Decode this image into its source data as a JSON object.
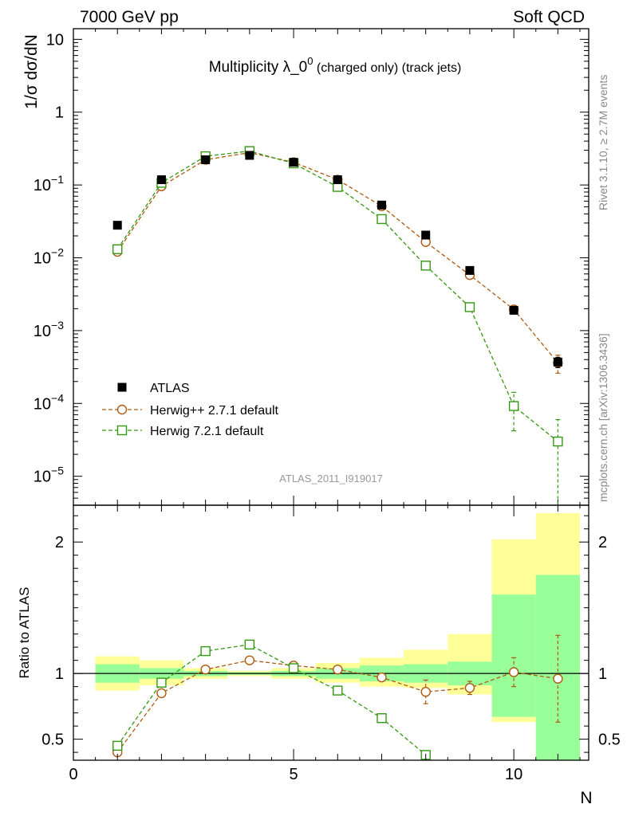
{
  "header": {
    "left": "7000 GeV pp",
    "right": "Soft QCD"
  },
  "side_text": {
    "rivet": "Rivet 3.1.10, ≥ 2.7M events",
    "mcplots": "mcplots.cern.ch [arXiv:1306.3436]"
  },
  "watermark": "ATLAS_2011_I919017",
  "colors": {
    "data": "#000000",
    "herwigpp": "#b05a10",
    "herwig7": "#339911",
    "band_outer": "#ffff99",
    "band_inner": "#99ff99"
  },
  "chart_data": [
    {
      "type": "scatter",
      "title_main": "Multiplicity λ_0",
      "title_sup": "0",
      "title_extra": " (charged only) (track jets)",
      "ylabel": "1/σ dσ/dN",
      "yscale": "log",
      "ylim": [
        4e-06,
        14
      ],
      "xlim": [
        0,
        11.7
      ],
      "y_ticks": [
        {
          "v": 10,
          "base": "10",
          "exp": ""
        },
        {
          "v": 1,
          "base": "1",
          "exp": ""
        },
        {
          "v": 0.1,
          "base": "10",
          "exp": "−1"
        },
        {
          "v": 0.01,
          "base": "10",
          "exp": "−2"
        },
        {
          "v": 0.001,
          "base": "10",
          "exp": "−3"
        },
        {
          "v": 0.0001,
          "base": "10",
          "exp": "−4"
        },
        {
          "v": 1e-05,
          "base": "10",
          "exp": "−5"
        }
      ],
      "legend_position": "lower-left",
      "series": [
        {
          "name": "ATLAS",
          "style": "data",
          "x": [
            1,
            2,
            3,
            4,
            5,
            6,
            7,
            8,
            9,
            10,
            11
          ],
          "y": [
            0.028,
            0.118,
            0.222,
            0.255,
            0.205,
            0.118,
            0.053,
            0.0205,
            0.0067,
            0.0019,
            0.00037
          ],
          "yerr": [
            0.001,
            0.003,
            0.005,
            0.006,
            0.005,
            0.003,
            0.0015,
            0.0007,
            0.0003,
            0.0001,
            6e-05
          ]
        },
        {
          "name": "Herwig++ 2.7.1 default",
          "style": "circle",
          "x": [
            1,
            2,
            3,
            4,
            5,
            6,
            7,
            8,
            9,
            10,
            11
          ],
          "y": [
            0.0121,
            0.096,
            0.222,
            0.278,
            0.205,
            0.118,
            0.051,
            0.0165,
            0.0058,
            0.00195,
            0.00036
          ],
          "yerr": [
            0.0003,
            0.001,
            0.001,
            0.001,
            0.001,
            0.001,
            0.0005,
            0.0003,
            0.0002,
            0.0001,
            0.0001
          ]
        },
        {
          "name": "Herwig 7.2.1 default",
          "style": "square",
          "x": [
            1,
            2,
            3,
            4,
            5,
            6,
            7,
            8,
            9,
            10,
            11
          ],
          "y": [
            0.0131,
            0.107,
            0.248,
            0.292,
            0.198,
            0.094,
            0.034,
            0.0078,
            0.0021,
            9.2e-05,
            3e-05
          ],
          "yerr": [
            0.0004,
            0.001,
            0.001,
            0.001,
            0.001,
            0.001,
            0.001,
            0.0002,
            0.0001,
            5e-05,
            3e-05
          ]
        }
      ]
    },
    {
      "type": "scatter",
      "ylabel": "Ratio to ATLAS",
      "xlabel": "N",
      "ylim": [
        0.34,
        2.28
      ],
      "xlim": [
        0,
        11.7
      ],
      "x_ticks": [
        0,
        5,
        10
      ],
      "y_ticks": [
        0.5,
        1,
        2
      ],
      "y_tick_labels": [
        "0.5",
        "1",
        "2"
      ],
      "reference_line": 1,
      "bands": {
        "x_edges": [
          0.5,
          1.5,
          2.5,
          3.5,
          4.5,
          5.5,
          6.5,
          7.5,
          8.5,
          9.5,
          10.5,
          11.5
        ],
        "inner_lo": [
          0.93,
          0.96,
          0.98,
          0.99,
          0.98,
          0.96,
          0.94,
          0.93,
          0.91,
          0.67,
          0.34
        ],
        "inner_hi": [
          1.07,
          1.04,
          1.02,
          1.01,
          1.02,
          1.04,
          1.06,
          1.07,
          1.09,
          1.6,
          1.75
        ],
        "outer_lo": [
          0.87,
          0.91,
          0.96,
          0.98,
          0.96,
          0.93,
          0.9,
          0.89,
          0.84,
          0.63,
          0.34
        ],
        "outer_hi": [
          1.13,
          1.1,
          1.04,
          1.02,
          1.04,
          1.08,
          1.12,
          1.18,
          1.3,
          2.02,
          2.22
        ]
      },
      "series": [
        {
          "name": "Herwig++ 2.7.1 default",
          "style": "circle",
          "x": [
            1,
            2,
            3,
            4,
            5,
            6,
            7,
            8,
            9,
            10,
            11
          ],
          "y": [
            0.4,
            0.85,
            1.03,
            1.1,
            1.06,
            1.03,
            0.97,
            0.86,
            0.89,
            1.01,
            0.96
          ],
          "yerr": [
            0.02,
            0.02,
            0.02,
            0.02,
            0.02,
            0.02,
            0.02,
            0.09,
            0.05,
            0.11,
            0.33
          ]
        },
        {
          "name": "Herwig 7.2.1 default",
          "style": "square",
          "x": [
            1,
            2,
            3,
            4,
            5,
            6,
            7,
            8
          ],
          "y": [
            0.45,
            0.93,
            1.17,
            1.22,
            1.04,
            0.87,
            0.66,
            0.38
          ],
          "yerr": [
            0.02,
            0.02,
            0.02,
            0.02,
            0.02,
            0.02,
            0.02,
            0.02
          ]
        }
      ]
    }
  ]
}
